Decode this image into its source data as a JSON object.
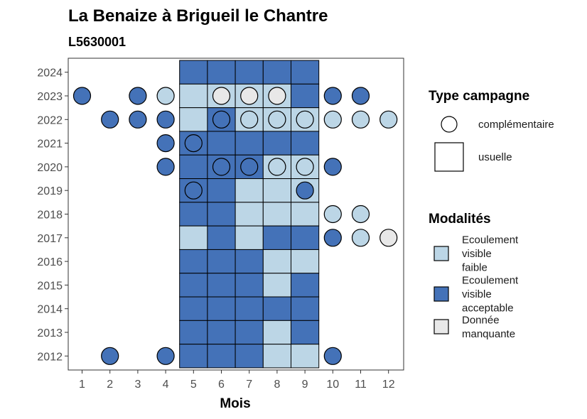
{
  "title": "La Benaize à Brigueil le Chantre",
  "subtitle": "L5630001",
  "chart_data": {
    "type": "heatmap",
    "xlabel": "Mois",
    "ylabel": "",
    "x_ticks": [
      "1",
      "2",
      "3",
      "4",
      "5",
      "6",
      "7",
      "8",
      "9",
      "10",
      "11",
      "12"
    ],
    "y_ticks": [
      "2012",
      "2013",
      "2014",
      "2015",
      "2016",
      "2017",
      "2018",
      "2019",
      "2020",
      "2021",
      "2022",
      "2023",
      "2024"
    ],
    "colors": {
      "faible": "#bcd6e6",
      "acceptable": "#4472b8",
      "manquante": "#e8e8e8",
      "outline": "#000000"
    },
    "usuelle": [
      {
        "year": 2024,
        "months": [
          5,
          6,
          7,
          8,
          9
        ],
        "values": [
          "acceptable",
          "acceptable",
          "acceptable",
          "acceptable",
          "acceptable"
        ]
      },
      {
        "year": 2023,
        "months": [
          5,
          6,
          7,
          8,
          9
        ],
        "values": [
          "faible",
          "faible",
          "faible",
          "faible",
          "acceptable"
        ]
      },
      {
        "year": 2022,
        "months": [
          5,
          6,
          7,
          8,
          9
        ],
        "values": [
          "faible",
          "acceptable",
          "faible",
          "faible",
          "faible"
        ]
      },
      {
        "year": 2021,
        "months": [
          5,
          6,
          7,
          8,
          9
        ],
        "values": [
          "acceptable",
          "acceptable",
          "acceptable",
          "acceptable",
          "acceptable"
        ]
      },
      {
        "year": 2020,
        "months": [
          5,
          6,
          7,
          8,
          9
        ],
        "values": [
          "acceptable",
          "acceptable",
          "acceptable",
          "faible",
          "faible"
        ]
      },
      {
        "year": 2019,
        "months": [
          5,
          6,
          7,
          8,
          9
        ],
        "values": [
          "acceptable",
          "acceptable",
          "faible",
          "faible",
          "faible"
        ]
      },
      {
        "year": 2018,
        "months": [
          5,
          6,
          7,
          8,
          9
        ],
        "values": [
          "acceptable",
          "acceptable",
          "faible",
          "faible",
          "faible"
        ]
      },
      {
        "year": 2017,
        "months": [
          5,
          6,
          7,
          8,
          9
        ],
        "values": [
          "faible",
          "acceptable",
          "faible",
          "acceptable",
          "acceptable"
        ]
      },
      {
        "year": 2016,
        "months": [
          5,
          6,
          7,
          8,
          9
        ],
        "values": [
          "acceptable",
          "acceptable",
          "acceptable",
          "faible",
          "faible"
        ]
      },
      {
        "year": 2015,
        "months": [
          5,
          6,
          7,
          8,
          9
        ],
        "values": [
          "acceptable",
          "acceptable",
          "acceptable",
          "faible",
          "acceptable"
        ]
      },
      {
        "year": 2014,
        "months": [
          5,
          6,
          7,
          8,
          9
        ],
        "values": [
          "acceptable",
          "acceptable",
          "acceptable",
          "acceptable",
          "acceptable"
        ]
      },
      {
        "year": 2013,
        "months": [
          5,
          6,
          7,
          8,
          9
        ],
        "values": [
          "acceptable",
          "acceptable",
          "acceptable",
          "faible",
          "acceptable"
        ]
      },
      {
        "year": 2012,
        "months": [
          5,
          6,
          7,
          8,
          9
        ],
        "values": [
          "acceptable",
          "acceptable",
          "acceptable",
          "faible",
          "faible"
        ]
      }
    ],
    "complementaire": [
      {
        "year": 2023,
        "month": 1,
        "value": "acceptable"
      },
      {
        "year": 2023,
        "month": 3,
        "value": "acceptable"
      },
      {
        "year": 2023,
        "month": 4,
        "value": "faible"
      },
      {
        "year": 2023,
        "month": 6,
        "value": "manquante"
      },
      {
        "year": 2023,
        "month": 7,
        "value": "manquante"
      },
      {
        "year": 2023,
        "month": 8,
        "value": "manquante"
      },
      {
        "year": 2023,
        "month": 10,
        "value": "acceptable"
      },
      {
        "year": 2023,
        "month": 11,
        "value": "acceptable"
      },
      {
        "year": 2022,
        "month": 2,
        "value": "acceptable"
      },
      {
        "year": 2022,
        "month": 3,
        "value": "acceptable"
      },
      {
        "year": 2022,
        "month": 4,
        "value": "acceptable"
      },
      {
        "year": 2022,
        "month": 6,
        "value": "acceptable"
      },
      {
        "year": 2022,
        "month": 7,
        "value": "faible"
      },
      {
        "year": 2022,
        "month": 8,
        "value": "faible"
      },
      {
        "year": 2022,
        "month": 9,
        "value": "faible"
      },
      {
        "year": 2022,
        "month": 10,
        "value": "faible"
      },
      {
        "year": 2022,
        "month": 11,
        "value": "faible"
      },
      {
        "year": 2022,
        "month": 12,
        "value": "faible"
      },
      {
        "year": 2021,
        "month": 4,
        "value": "acceptable"
      },
      {
        "year": 2021,
        "month": 5,
        "value": "acceptable"
      },
      {
        "year": 2020,
        "month": 4,
        "value": "acceptable"
      },
      {
        "year": 2020,
        "month": 6,
        "value": "acceptable"
      },
      {
        "year": 2020,
        "month": 7,
        "value": "acceptable"
      },
      {
        "year": 2020,
        "month": 8,
        "value": "faible"
      },
      {
        "year": 2020,
        "month": 9,
        "value": "faible"
      },
      {
        "year": 2020,
        "month": 10,
        "value": "acceptable"
      },
      {
        "year": 2019,
        "month": 5,
        "value": "acceptable"
      },
      {
        "year": 2019,
        "month": 9,
        "value": "acceptable"
      },
      {
        "year": 2018,
        "month": 10,
        "value": "faible"
      },
      {
        "year": 2018,
        "month": 11,
        "value": "faible"
      },
      {
        "year": 2017,
        "month": 10,
        "value": "acceptable"
      },
      {
        "year": 2017,
        "month": 11,
        "value": "faible"
      },
      {
        "year": 2017,
        "month": 12,
        "value": "manquante"
      },
      {
        "year": 2012,
        "month": 2,
        "value": "acceptable"
      },
      {
        "year": 2012,
        "month": 4,
        "value": "acceptable"
      },
      {
        "year": 2012,
        "month": 10,
        "value": "acceptable"
      }
    ],
    "legend_shape": {
      "title": "Type campagne",
      "items": [
        {
          "label": "complémentaire",
          "shape": "circle"
        },
        {
          "label": "usuelle",
          "shape": "square"
        }
      ]
    },
    "legend_color": {
      "title": "Modalités",
      "items": [
        {
          "key": "faible",
          "lines": [
            "Ecoulement",
            "visible",
            "faible"
          ]
        },
        {
          "key": "acceptable",
          "lines": [
            "Ecoulement",
            "visible",
            "acceptable"
          ]
        },
        {
          "key": "manquante",
          "lines": [
            "Donnée",
            "manquante"
          ]
        }
      ]
    }
  }
}
